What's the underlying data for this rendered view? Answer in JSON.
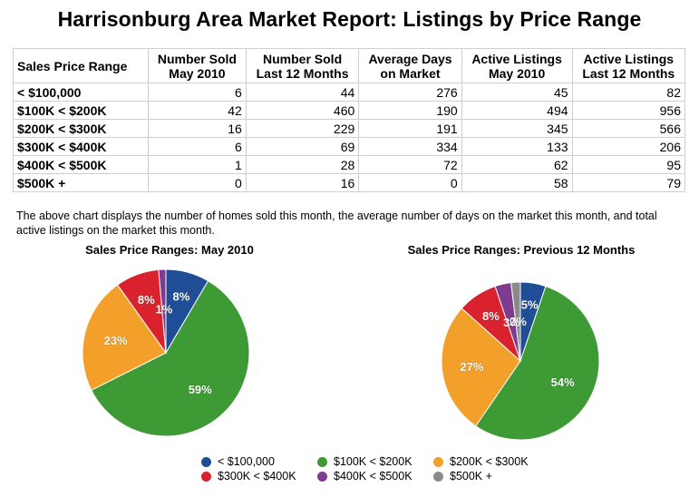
{
  "title": "Harrisonburg Area Market Report: Listings by Price Range",
  "table": {
    "headers": [
      [
        "Sales Price Range"
      ],
      [
        "Number Sold",
        "May 2010"
      ],
      [
        "Number Sold",
        "Last 12 Months"
      ],
      [
        "Average Days",
        "on Market"
      ],
      [
        "Active Listings",
        "May 2010"
      ],
      [
        "Active Listings",
        "Last 12 Months"
      ]
    ],
    "rows": [
      [
        "< $100,000",
        "6",
        "44",
        "276",
        "45",
        "82"
      ],
      [
        "$100K < $200K",
        "42",
        "460",
        "190",
        "494",
        "956"
      ],
      [
        "$200K < $300K",
        "16",
        "229",
        "191",
        "345",
        "566"
      ],
      [
        "$300K < $400K",
        "6",
        "69",
        "334",
        "133",
        "206"
      ],
      [
        "$400K < $500K",
        "1",
        "28",
        "72",
        "62",
        "95"
      ],
      [
        "$500K +",
        "0",
        "16",
        "0",
        "58",
        "79"
      ]
    ]
  },
  "description": "The above chart displays the number of homes sold this month, the average number of days on the market this month, and total active listings on the market this month.",
  "chart_data": [
    {
      "type": "pie",
      "title": "Sales Price Ranges: May 2010",
      "categories": [
        "< $100,000",
        "$100K < $200K",
        "$200K < $300K",
        "$300K < $400K",
        "$400K < $500K",
        "$500K +"
      ],
      "values": [
        6,
        42,
        16,
        6,
        1,
        0
      ],
      "labels": [
        "8%",
        "59%",
        "23%",
        "8%",
        "1%",
        ""
      ],
      "colors": [
        "#1f4e96",
        "#3d9a35",
        "#f3a02b",
        "#d9222e",
        "#7e3c8e",
        "#8a8a8a"
      ]
    },
    {
      "type": "pie",
      "title": "Sales Price Ranges: Previous 12 Months",
      "categories": [
        "< $100,000",
        "$100K < $200K",
        "$200K < $300K",
        "$300K < $400K",
        "$400K < $500K",
        "$500K +"
      ],
      "values": [
        44,
        460,
        229,
        69,
        28,
        16
      ],
      "labels": [
        "5%",
        "54%",
        "27%",
        "8%",
        "3%",
        "2%"
      ],
      "colors": [
        "#1f4e96",
        "#3d9a35",
        "#f3a02b",
        "#d9222e",
        "#7e3c8e",
        "#8a8a8a"
      ]
    }
  ],
  "legend": {
    "items": [
      {
        "label": "< $100,000",
        "color": "#1f4e96"
      },
      {
        "label": "$100K < $200K",
        "color": "#3d9a35"
      },
      {
        "label": "$200K < $300K",
        "color": "#f3a02b"
      },
      {
        "label": "$300K < $400K",
        "color": "#d9222e"
      },
      {
        "label": "$400K < $500K",
        "color": "#7e3c8e"
      },
      {
        "label": "$500K +",
        "color": "#8a8a8a"
      }
    ]
  }
}
